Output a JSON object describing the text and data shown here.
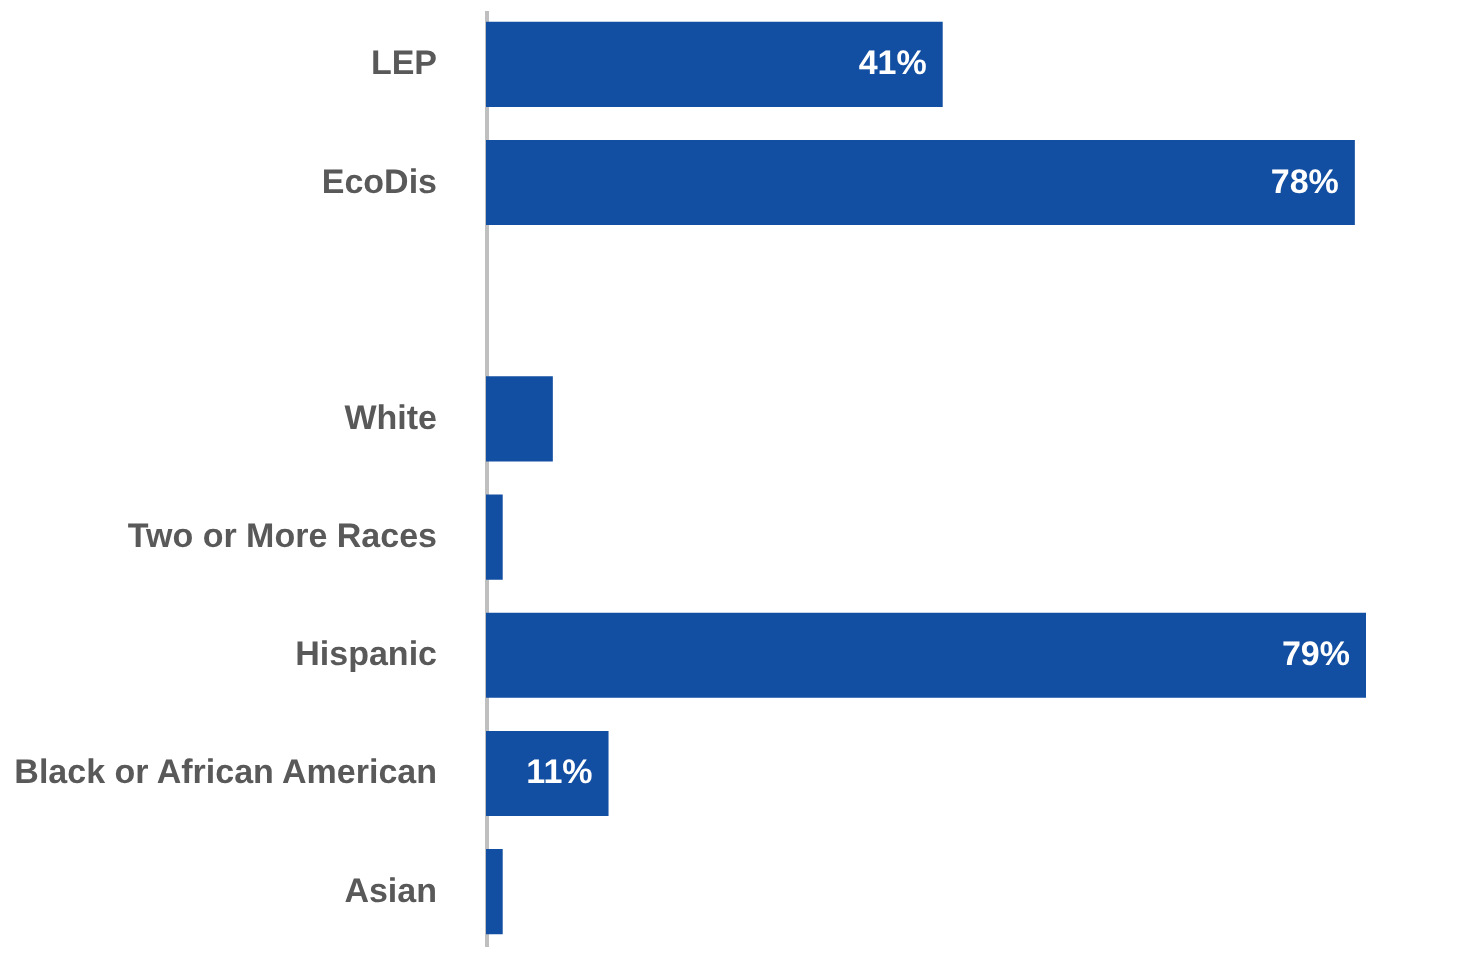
{
  "chart_data": {
    "type": "bar",
    "orientation": "horizontal",
    "categories": [
      "LEP",
      "EcoDis",
      null,
      "White",
      "Two or More Races",
      "Hispanic",
      "Black or African American",
      "Asian"
    ],
    "values": [
      41,
      78,
      null,
      6,
      1.5,
      79,
      11,
      1.5
    ],
    "value_labels": [
      "41%",
      "78%",
      null,
      null,
      null,
      "79%",
      "11%",
      null
    ],
    "color": "#124ea1",
    "grid": false
  }
}
